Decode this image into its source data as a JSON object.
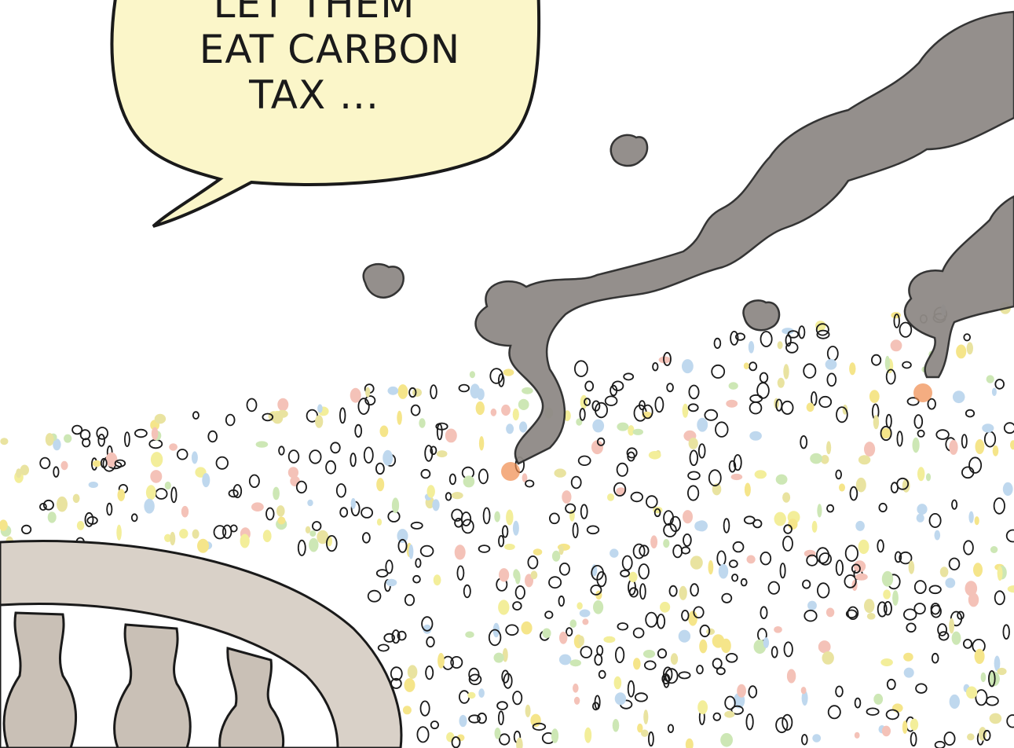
{
  "speech_bubble": {
    "lines": [
      "LET THEM",
      "EAT CARBON",
      "TAX ..."
    ]
  }
}
